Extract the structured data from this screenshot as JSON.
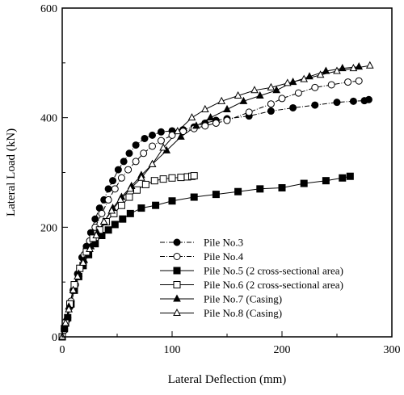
{
  "chart_data": {
    "type": "line",
    "title": "",
    "xlabel": "Lateral Deflection (mm)",
    "ylabel": "Lateral Load (kN)",
    "xlim": [
      0,
      300
    ],
    "ylim": [
      0,
      600
    ],
    "xticks": [
      "0",
      "100",
      "200",
      "300"
    ],
    "yticks": [
      "0",
      "200",
      "400",
      "600"
    ],
    "grid": false,
    "legend_position": "bottom-center",
    "series": [
      {
        "name": "Pile No.3",
        "marker": "filled-circle",
        "line_style": "dash-dot",
        "points": [
          [
            0,
            0
          ],
          [
            2,
            15
          ],
          [
            4,
            30
          ],
          [
            7,
            55
          ],
          [
            10,
            85
          ],
          [
            14,
            115
          ],
          [
            18,
            145
          ],
          [
            22,
            165
          ],
          [
            26,
            190
          ],
          [
            30,
            215
          ],
          [
            34,
            235
          ],
          [
            38,
            250
          ],
          [
            42,
            270
          ],
          [
            46,
            285
          ],
          [
            51,
            305
          ],
          [
            56,
            320
          ],
          [
            61,
            335
          ],
          [
            67,
            350
          ],
          [
            75,
            362
          ],
          [
            82,
            368
          ],
          [
            90,
            374
          ],
          [
            100,
            376
          ],
          [
            110,
            378
          ],
          [
            120,
            383
          ],
          [
            130,
            390
          ],
          [
            140,
            395
          ],
          [
            150,
            398
          ],
          [
            170,
            403
          ],
          [
            190,
            412
          ],
          [
            210,
            418
          ],
          [
            230,
            423
          ],
          [
            250,
            428
          ],
          [
            265,
            430
          ],
          [
            275,
            431
          ],
          [
            279,
            433
          ]
        ]
      },
      {
        "name": "Pile No.4",
        "marker": "open-circle",
        "line_style": "dash-dot",
        "points": [
          [
            0,
            0
          ],
          [
            2,
            12
          ],
          [
            5,
            35
          ],
          [
            8,
            65
          ],
          [
            12,
            95
          ],
          [
            16,
            125
          ],
          [
            20,
            150
          ],
          [
            25,
            175
          ],
          [
            30,
            200
          ],
          [
            36,
            225
          ],
          [
            42,
            250
          ],
          [
            48,
            270
          ],
          [
            54,
            290
          ],
          [
            60,
            305
          ],
          [
            67,
            320
          ],
          [
            74,
            335
          ],
          [
            82,
            348
          ],
          [
            90,
            358
          ],
          [
            100,
            368
          ],
          [
            110,
            375
          ],
          [
            120,
            380
          ],
          [
            130,
            385
          ],
          [
            140,
            390
          ],
          [
            150,
            395
          ],
          [
            170,
            410
          ],
          [
            190,
            425
          ],
          [
            200,
            435
          ],
          [
            215,
            445
          ],
          [
            230,
            455
          ],
          [
            245,
            460
          ],
          [
            260,
            465
          ],
          [
            270,
            467
          ]
        ]
      },
      {
        "name": "Pile No.5 (2 cross-sectional area)",
        "marker": "filled-square",
        "line_style": "solid",
        "points": [
          [
            0,
            0
          ],
          [
            2,
            15
          ],
          [
            5,
            35
          ],
          [
            8,
            60
          ],
          [
            11,
            85
          ],
          [
            15,
            110
          ],
          [
            19,
            130
          ],
          [
            24,
            150
          ],
          [
            30,
            170
          ],
          [
            36,
            185
          ],
          [
            42,
            195
          ],
          [
            48,
            205
          ],
          [
            55,
            215
          ],
          [
            62,
            225
          ],
          [
            72,
            235
          ],
          [
            85,
            240
          ],
          [
            100,
            248
          ],
          [
            120,
            255
          ],
          [
            140,
            260
          ],
          [
            160,
            265
          ],
          [
            180,
            270
          ],
          [
            200,
            272
          ],
          [
            220,
            280
          ],
          [
            240,
            285
          ],
          [
            255,
            290
          ],
          [
            262,
            293
          ]
        ]
      },
      {
        "name": "Pile No.6 (2 cross-sectional area)",
        "marker": "open-square",
        "line_style": "solid",
        "points": [
          [
            0,
            0
          ],
          [
            3,
            25
          ],
          [
            7,
            60
          ],
          [
            11,
            95
          ],
          [
            16,
            125
          ],
          [
            22,
            155
          ],
          [
            28,
            180
          ],
          [
            34,
            195
          ],
          [
            40,
            210
          ],
          [
            47,
            225
          ],
          [
            54,
            240
          ],
          [
            61,
            255
          ],
          [
            68,
            268
          ],
          [
            76,
            278
          ],
          [
            84,
            285
          ],
          [
            92,
            288
          ],
          [
            100,
            290
          ],
          [
            108,
            291
          ],
          [
            114,
            292
          ],
          [
            118,
            293
          ],
          [
            120,
            294
          ]
        ]
      },
      {
        "name": "Pile No.7 (Casing)",
        "marker": "filled-triangle",
        "line_style": "solid",
        "points": [
          [
            0,
            0
          ],
          [
            3,
            25
          ],
          [
            6,
            55
          ],
          [
            10,
            85
          ],
          [
            15,
            115
          ],
          [
            20,
            140
          ],
          [
            26,
            165
          ],
          [
            32,
            190
          ],
          [
            38,
            210
          ],
          [
            46,
            235
          ],
          [
            54,
            255
          ],
          [
            63,
            275
          ],
          [
            72,
            295
          ],
          [
            82,
            315
          ],
          [
            95,
            340
          ],
          [
            108,
            365
          ],
          [
            122,
            385
          ],
          [
            135,
            400
          ],
          [
            150,
            415
          ],
          [
            165,
            430
          ],
          [
            180,
            440
          ],
          [
            195,
            450
          ],
          [
            210,
            465
          ],
          [
            225,
            475
          ],
          [
            240,
            485
          ],
          [
            255,
            490
          ],
          [
            270,
            493
          ]
        ]
      },
      {
        "name": "Pile No.8 (Casing)",
        "marker": "open-triangle",
        "line_style": "solid",
        "points": [
          [
            0,
            0
          ],
          [
            3,
            25
          ],
          [
            6,
            50
          ],
          [
            10,
            85
          ],
          [
            14,
            110
          ],
          [
            19,
            135
          ],
          [
            25,
            160
          ],
          [
            31,
            185
          ],
          [
            38,
            210
          ],
          [
            45,
            230
          ],
          [
            53,
            250
          ],
          [
            62,
            270
          ],
          [
            72,
            290
          ],
          [
            82,
            315
          ],
          [
            92,
            345
          ],
          [
            105,
            375
          ],
          [
            118,
            400
          ],
          [
            130,
            415
          ],
          [
            145,
            430
          ],
          [
            160,
            440
          ],
          [
            175,
            450
          ],
          [
            190,
            455
          ],
          [
            205,
            463
          ],
          [
            220,
            470
          ],
          [
            235,
            478
          ],
          [
            250,
            485
          ],
          [
            265,
            490
          ],
          [
            280,
            495
          ]
        ]
      }
    ]
  }
}
